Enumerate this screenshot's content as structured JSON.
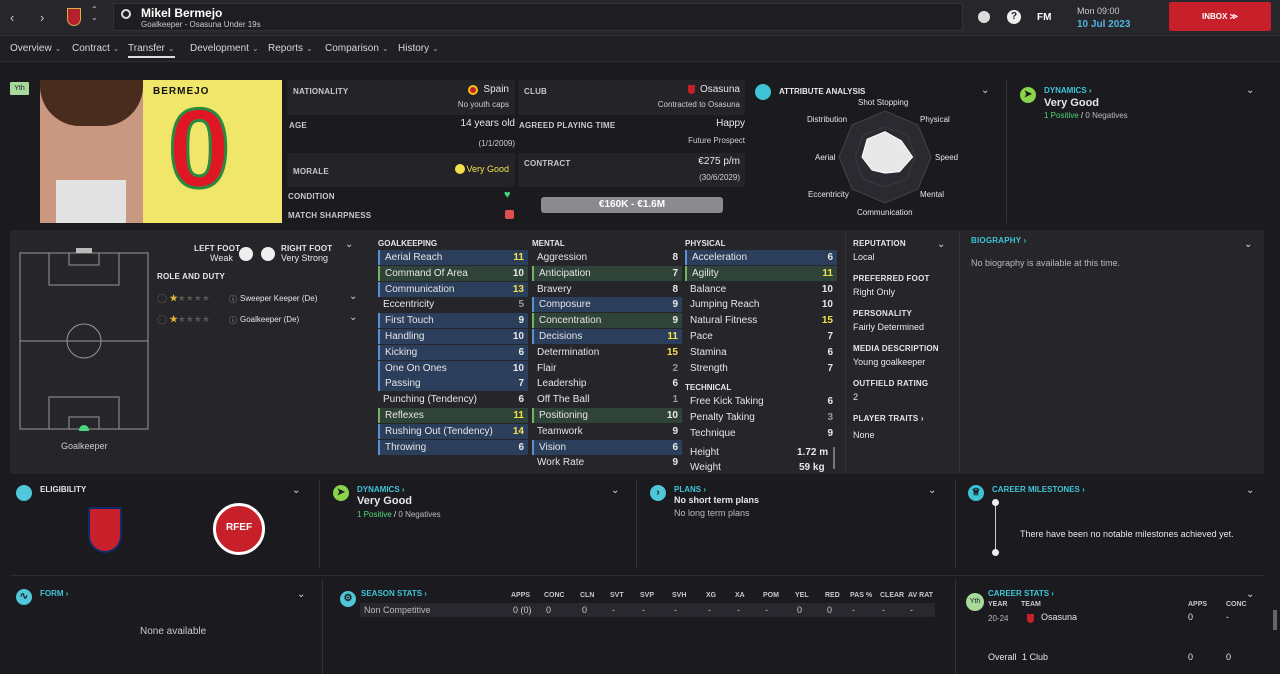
{
  "header": {
    "name": "Mikel Bermejo",
    "subtitle": "Goalkeeper - Osasuna Under 19s",
    "day": "Mon 09:00",
    "date": "10 Jul 2023",
    "inbox": "INBOX",
    "fm": "FM"
  },
  "tabs": [
    "Overview",
    "Contract",
    "Transfer",
    "Development",
    "Reports",
    "Comparison",
    "History"
  ],
  "badge": "Yth",
  "shirt": {
    "name": "BERMEJO",
    "number": "0"
  },
  "info": {
    "nationality_label": "NATIONALITY",
    "nationality": "Spain",
    "nationality_sub": "No youth caps",
    "age_label": "AGE",
    "age": "14 years old",
    "dob": "(1/1/2009)",
    "morale_label": "MORALE",
    "morale": "Very Good",
    "condition_label": "CONDITION",
    "sharpness_label": "MATCH SHARPNESS",
    "club_label": "CLUB",
    "club": "Osasuna",
    "club_sub": "Contracted to Osasuna",
    "playtime_label": "AGREED PLAYING TIME",
    "playtime": "Happy",
    "playtime_sub": "Future Prospect",
    "contract_label": "CONTRACT",
    "contract": "€275 p/m",
    "contract_sub": "(30/6/2029)",
    "value": "€160K - €1.6M"
  },
  "analysis": {
    "title": "ATTRIBUTE ANALYSIS",
    "labels": [
      "Shot Stopping",
      "Physical",
      "Speed",
      "Mental",
      "Communication",
      "Eccentricity",
      "Aerial",
      "Distribution"
    ],
    "values": [
      0.55,
      0.5,
      0.6,
      0.45,
      0.35,
      0.4,
      0.5,
      0.55
    ]
  },
  "dynamics": {
    "title": "DYNAMICS",
    "value": "Very Good",
    "positive": "1 Positive",
    "sep": "/",
    "negative": "0 Negatives"
  },
  "feet": {
    "left_label": "LEFT FOOT",
    "left": "Weak",
    "right_label": "RIGHT FOOT",
    "right": "Very Strong"
  },
  "roles": {
    "title": "ROLE AND DUTY",
    "items": [
      {
        "name": "Sweeper Keeper (De)",
        "stars": 1.5
      },
      {
        "name": "Goalkeeper (De)",
        "stars": 1.5
      }
    ]
  },
  "pitch_label": "Goalkeeper",
  "goalkeeping": {
    "title": "GOALKEEPING",
    "rows": [
      [
        "Aerial Reach",
        "11",
        "b"
      ],
      [
        "Command Of Area",
        "10",
        "g"
      ],
      [
        "Communication",
        "13",
        "b"
      ],
      [
        "Eccentricity",
        "5",
        ""
      ],
      [
        "First Touch",
        "9",
        "b"
      ],
      [
        "Handling",
        "10",
        "b"
      ],
      [
        "Kicking",
        "6",
        "b"
      ],
      [
        "One On Ones",
        "10",
        "b"
      ],
      [
        "Passing",
        "7",
        "b"
      ],
      [
        "Punching (Tendency)",
        "6",
        ""
      ],
      [
        "Reflexes",
        "11",
        "g"
      ],
      [
        "Rushing Out (Tendency)",
        "14",
        "b"
      ],
      [
        "Throwing",
        "6",
        "b"
      ]
    ]
  },
  "mental": {
    "title": "MENTAL",
    "rows": [
      [
        "Aggression",
        "8",
        ""
      ],
      [
        "Anticipation",
        "7",
        "g"
      ],
      [
        "Bravery",
        "8",
        ""
      ],
      [
        "Composure",
        "9",
        "b"
      ],
      [
        "Concentration",
        "9",
        "g"
      ],
      [
        "Decisions",
        "11",
        "b"
      ],
      [
        "Determination",
        "15",
        ""
      ],
      [
        "Flair",
        "2",
        ""
      ],
      [
        "Leadership",
        "6",
        ""
      ],
      [
        "Off The Ball",
        "1",
        ""
      ],
      [
        "Positioning",
        "10",
        "g"
      ],
      [
        "Teamwork",
        "9",
        ""
      ],
      [
        "Vision",
        "6",
        "b"
      ],
      [
        "Work Rate",
        "9",
        ""
      ]
    ]
  },
  "physical": {
    "title": "PHYSICAL",
    "rows": [
      [
        "Acceleration",
        "6",
        "b"
      ],
      [
        "Agility",
        "11",
        "g"
      ],
      [
        "Balance",
        "10",
        ""
      ],
      [
        "Jumping Reach",
        "10",
        ""
      ],
      [
        "Natural Fitness",
        "15",
        ""
      ],
      [
        "Pace",
        "7",
        ""
      ],
      [
        "Stamina",
        "6",
        ""
      ],
      [
        "Strength",
        "7",
        ""
      ]
    ]
  },
  "technical": {
    "title": "TECHNICAL",
    "rows": [
      [
        "Free Kick Taking",
        "6",
        ""
      ],
      [
        "Penalty Taking",
        "3",
        ""
      ],
      [
        "Technique",
        "9",
        ""
      ]
    ]
  },
  "measures": {
    "height_label": "Height",
    "height": "1.72 m",
    "weight_label": "Weight",
    "weight": "59 kg"
  },
  "side": {
    "reputation_label": "REPUTATION",
    "reputation": "Local",
    "foot_label": "PREFERRED FOOT",
    "foot": "Right Only",
    "personality_label": "PERSONALITY",
    "personality": "Fairly Determined",
    "media_label": "MEDIA DESCRIPTION",
    "media": "Young goalkeeper",
    "outfield_label": "OUTFIELD RATING",
    "outfield": "2",
    "traits_label": "PLAYER TRAITS",
    "traits": "None"
  },
  "biography": {
    "title": "BIOGRAPHY",
    "text": "No biography is available at this time."
  },
  "eligibility": {
    "title": "ELIGIBILITY",
    "rfef": "RFEF"
  },
  "dynamics2": {
    "title": "DYNAMICS",
    "value": "Very Good",
    "positive": "1 Positive",
    "sep": "/",
    "negative": "0 Negatives"
  },
  "plans": {
    "title": "PLANS",
    "short": "No short term plans",
    "long": "No long term plans"
  },
  "milestones": {
    "title": "CAREER MILESTONES",
    "text": "There have been no notable milestones achieved yet."
  },
  "form": {
    "title": "FORM",
    "text": "None available"
  },
  "season": {
    "title": "SEASON STATS",
    "headers": [
      "APPS",
      "CONC",
      "CLN",
      "SVT",
      "SVP",
      "SVH",
      "XG",
      "XA",
      "POM",
      "YEL",
      "RED",
      "PAS %",
      "CLEAR",
      "AV RAT"
    ],
    "row_label": "Non Competitive",
    "row": [
      "0 (0)",
      "0",
      "0",
      "-",
      "-",
      "-",
      "-",
      "-",
      "-",
      "0",
      "0",
      "-",
      "-",
      "-"
    ]
  },
  "career": {
    "title": "CAREER STATS",
    "badge": "Yth",
    "year_h": "YEAR",
    "team_h": "TEAM",
    "apps_h": "APPS",
    "conc_h": "CONC",
    "year": "20-24",
    "team": "Osasuna",
    "apps": "0",
    "conc": "-",
    "overall": "Overall",
    "clubs": "1 Club",
    "tot_apps": "0",
    "tot_conc": "0"
  }
}
